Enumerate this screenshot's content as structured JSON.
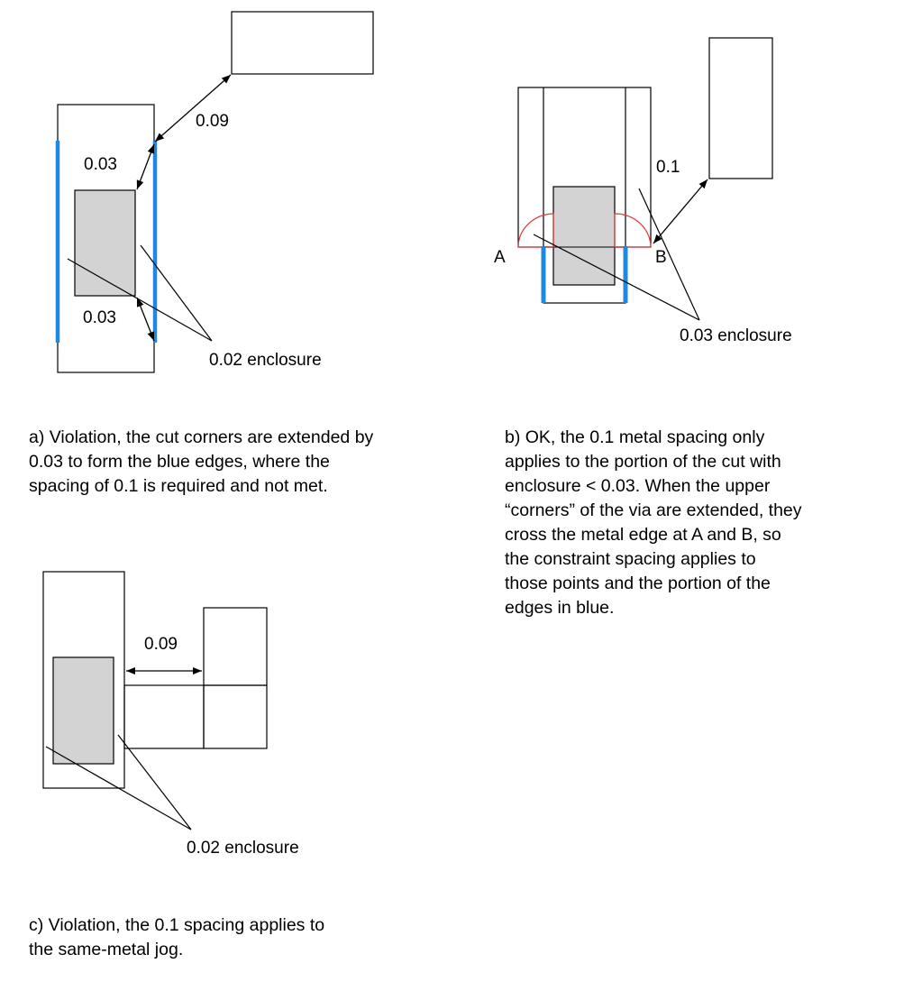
{
  "diagram_a": {
    "label_spacing": "0.09",
    "label_upper": "0.03",
    "label_lower": "0.03",
    "label_enclosure": "0.02 enclosure",
    "caption": [
      "a) Violation, the cut corners are extended by",
      "0.03 to form the blue edges, where the",
      "spacing of 0.1 is required and not met."
    ]
  },
  "diagram_b": {
    "label_spacing": "0.1",
    "label_point_a": "A",
    "label_point_b": "B",
    "label_enclosure": "0.03 enclosure",
    "caption": [
      "b) OK, the 0.1 metal spacing only",
      "applies to the portion of the cut with",
      "enclosure < 0.03. When the upper",
      "“corners” of the via are extended, they",
      "cross the metal edge at A and B, so",
      "the constraint spacing applies to",
      "those points and the portion of the",
      "edges in blue."
    ]
  },
  "diagram_c": {
    "label_spacing": "0.09",
    "label_enclosure": "0.02 enclosure",
    "caption": [
      "c) Violation, the 0.1 spacing applies to",
      "the same-metal jog."
    ]
  },
  "colors": {
    "outline": "#000000",
    "via_fill": "#d3d3d3",
    "edge_blue": "#1e88e5",
    "arc_red": "#e53935"
  }
}
